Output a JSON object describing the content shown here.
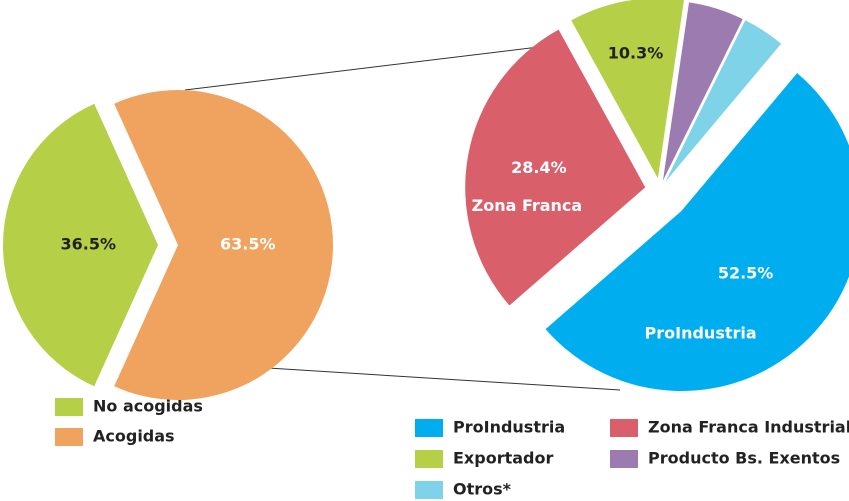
{
  "chart_data": [
    {
      "type": "pie",
      "categories": [
        "No acogidas",
        "Acogidas"
      ],
      "values": [
        36.5,
        63.5
      ],
      "value_labels": [
        "36.5%",
        "63.5%"
      ],
      "colors": [
        "#b5cf46",
        "#f0a35e"
      ]
    },
    {
      "type": "pie",
      "categories": [
        "ProIndustria",
        "Zona Franca Industrial",
        "Exportador",
        "Producto Bs. Exentos",
        "Otros*"
      ],
      "values": [
        52.5,
        28.4,
        10.3,
        5.0,
        3.8
      ],
      "value_labels": [
        "52.5%",
        "28.4%",
        "10.3%",
        null,
        null
      ],
      "inner_labels": [
        "ProIndustria",
        "Zona Franca",
        null,
        null,
        null
      ],
      "colors": [
        "#00aeef",
        "#d95f6a",
        "#b5cf46",
        "#9b7bb0",
        "#7fd3e8"
      ]
    }
  ]
}
